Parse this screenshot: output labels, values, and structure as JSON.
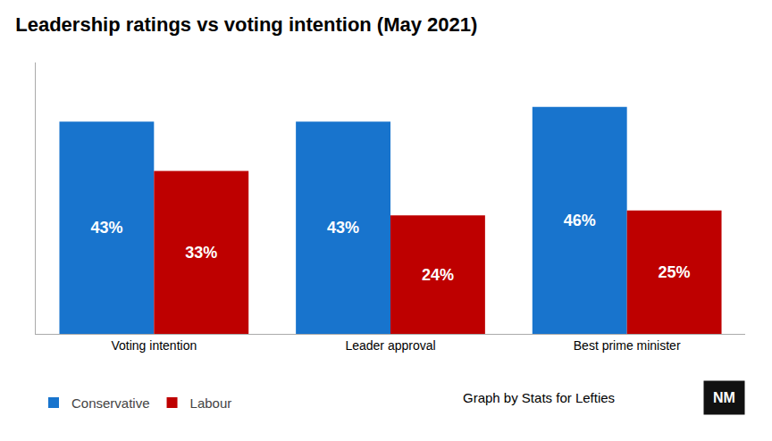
{
  "chart_data": {
    "type": "bar",
    "title": "Leadership ratings vs voting intention (May 2021)",
    "categories": [
      "Voting intention",
      "Leader approval",
      "Best prime minister"
    ],
    "series": [
      {
        "name": "Conservative",
        "color": "#1874CD",
        "values": [
          43,
          43,
          46
        ],
        "value_labels": [
          "43%",
          "43%",
          "46%"
        ]
      },
      {
        "name": "Labour",
        "color": "#BE0000",
        "values": [
          33,
          24,
          25
        ],
        "value_labels": [
          "33%",
          "24%",
          "25%"
        ]
      }
    ],
    "ylim": [
      0,
      55
    ],
    "grid": false,
    "legend": "bottom",
    "data_labels": true,
    "tick_labels": "x",
    "annotations": [
      "Graph by Stats for Lefties",
      "NM"
    ]
  }
}
